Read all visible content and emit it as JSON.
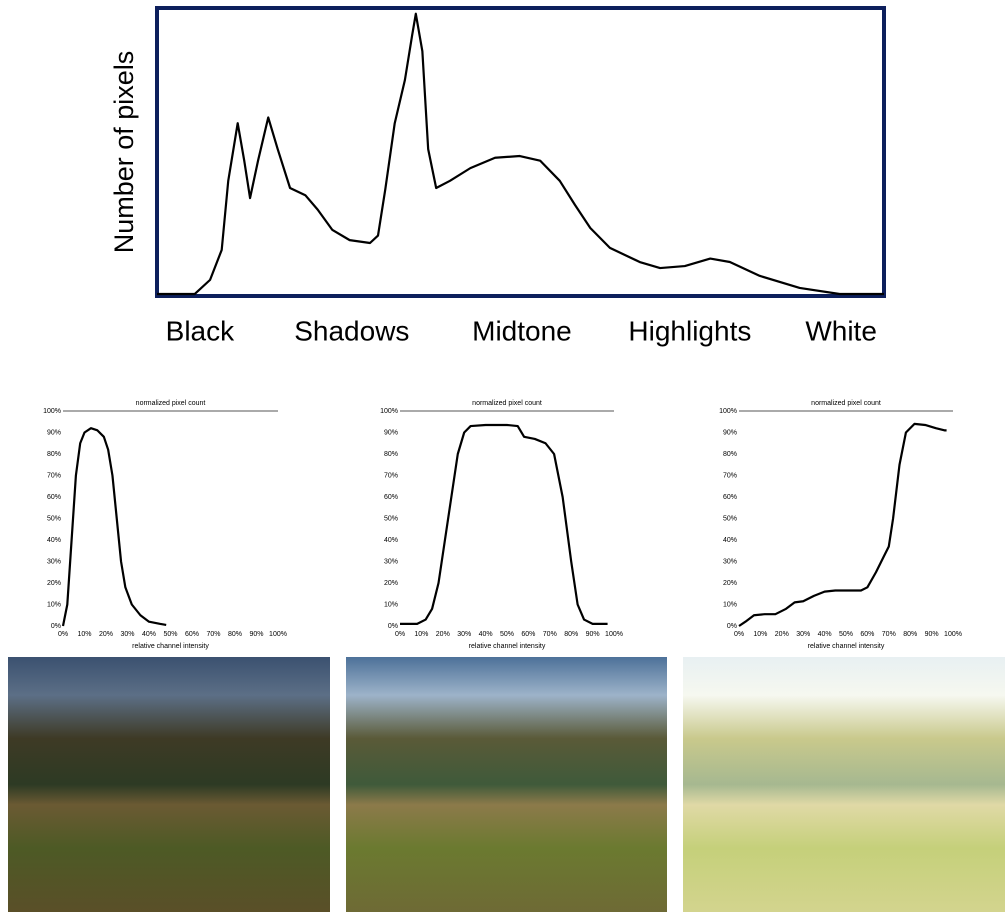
{
  "chart_data": [
    {
      "type": "line",
      "ylabel": "Number of pixels",
      "color": "#000000",
      "frame_color": "#0d1f5c",
      "x": [
        0,
        5.2,
        7.3,
        8.9,
        9.8,
        11.1,
        12,
        12.8,
        13.9,
        15.3,
        16.6,
        18.3,
        20.4,
        22.1,
        24.1,
        26.5,
        29.3,
        30.4,
        31.4,
        32.7,
        34.1,
        35.1,
        35.6,
        36.5,
        37.3,
        38.4,
        40.3,
        43.1,
        46.5,
        49.9,
        52.7,
        55.4,
        57.5,
        59.6,
        62.3,
        66.4,
        69.2,
        72.6,
        76.1,
        78.8,
        82.9,
        88.4,
        93.9,
        100
      ],
      "values": [
        0.7,
        0.7,
        5.6,
        16,
        40,
        60,
        47,
        34,
        47,
        62,
        51,
        37.5,
        35,
        30,
        23,
        19.4,
        18.4,
        21,
        37,
        60,
        75,
        90.6,
        98,
        85,
        51,
        37.5,
        40,
        44.4,
        48,
        48.6,
        47,
        40,
        31.6,
        23.6,
        16.7,
        11.8,
        9.7,
        10.4,
        13,
        11.8,
        7,
        2.8,
        0.7,
        0.7
      ],
      "xlim": [
        0,
        100
      ],
      "ylim": [
        0,
        100
      ],
      "xticks": [
        {
          "value": 5.9,
          "label": "Black"
        },
        {
          "value": 26.8,
          "label": "Shadows"
        },
        {
          "value": 50.2,
          "label": "Midtone"
        },
        {
          "value": 73.3,
          "label": "Highlights"
        },
        {
          "value": 94.1,
          "label": "White"
        }
      ]
    },
    {
      "type": "line",
      "title": "normalized pixel count",
      "xlabel": "relative channel intensity",
      "color": "#000000",
      "x": [
        0,
        2,
        4,
        6,
        8,
        10,
        13,
        16,
        19,
        21,
        23,
        25,
        27,
        29,
        32,
        36,
        40,
        45,
        48
      ],
      "values": [
        0,
        10,
        40,
        70,
        85,
        90,
        92,
        91,
        88,
        82,
        70,
        50,
        30,
        18,
        10,
        5,
        2,
        1,
        0.5
      ],
      "xlim": [
        0,
        100
      ],
      "ylim": [
        0,
        100
      ],
      "xticks": [
        {
          "value": 0,
          "label": "0%"
        },
        {
          "value": 10,
          "label": "10%"
        },
        {
          "value": 20,
          "label": "20%"
        },
        {
          "value": 30,
          "label": "30%"
        },
        {
          "value": 40,
          "label": "40%"
        },
        {
          "value": 50,
          "label": "50%"
        },
        {
          "value": 60,
          "label": "60%"
        },
        {
          "value": 70,
          "label": "70%"
        },
        {
          "value": 80,
          "label": "80%"
        },
        {
          "value": 90,
          "label": "90%"
        },
        {
          "value": 100,
          "label": "100%"
        }
      ],
      "yticks": [
        {
          "value": 0,
          "label": "0%"
        },
        {
          "value": 10,
          "label": "10%"
        },
        {
          "value": 20,
          "label": "20%"
        },
        {
          "value": 30,
          "label": "30%"
        },
        {
          "value": 40,
          "label": "40%"
        },
        {
          "value": 50,
          "label": "50%"
        },
        {
          "value": 60,
          "label": "60%"
        },
        {
          "value": 70,
          "label": "70%"
        },
        {
          "value": 80,
          "label": "80%"
        },
        {
          "value": 90,
          "label": "90%"
        },
        {
          "value": 100,
          "label": "100%"
        }
      ]
    },
    {
      "type": "line",
      "title": "normalized pixel count",
      "xlabel": "relative channel intensity",
      "color": "#000000",
      "x": [
        0,
        8,
        12,
        15,
        18,
        21,
        24,
        27,
        30,
        33,
        40,
        50,
        55,
        58,
        63,
        68,
        72,
        76,
        80,
        83,
        86,
        90,
        97
      ],
      "values": [
        1,
        1,
        3,
        8,
        20,
        40,
        60,
        80,
        90,
        93,
        93.5,
        93.5,
        93,
        88,
        87,
        85,
        80,
        60,
        30,
        10,
        3,
        1,
        1
      ],
      "xlim": [
        0,
        100
      ],
      "ylim": [
        0,
        100
      ],
      "xticks": [
        {
          "value": 0,
          "label": "0%"
        },
        {
          "value": 10,
          "label": "10%"
        },
        {
          "value": 20,
          "label": "20%"
        },
        {
          "value": 30,
          "label": "30%"
        },
        {
          "value": 40,
          "label": "40%"
        },
        {
          "value": 50,
          "label": "50%"
        },
        {
          "value": 60,
          "label": "60%"
        },
        {
          "value": 70,
          "label": "70%"
        },
        {
          "value": 80,
          "label": "80%"
        },
        {
          "value": 90,
          "label": "90%"
        },
        {
          "value": 100,
          "label": "100%"
        }
      ],
      "yticks": [
        {
          "value": 0,
          "label": "0%"
        },
        {
          "value": 10,
          "label": "10%"
        },
        {
          "value": 20,
          "label": "20%"
        },
        {
          "value": 30,
          "label": "30%"
        },
        {
          "value": 40,
          "label": "40%"
        },
        {
          "value": 50,
          "label": "50%"
        },
        {
          "value": 60,
          "label": "60%"
        },
        {
          "value": 70,
          "label": "70%"
        },
        {
          "value": 80,
          "label": "80%"
        },
        {
          "value": 90,
          "label": "90%"
        },
        {
          "value": 100,
          "label": "100%"
        }
      ]
    },
    {
      "type": "line",
      "title": "normalized pixel count",
      "xlabel": "relative channel intensity",
      "color": "#000000",
      "x": [
        0,
        3,
        7,
        12,
        17,
        22,
        26,
        30,
        35,
        40,
        45,
        50,
        57,
        60,
        64,
        68,
        70,
        72,
        75,
        78,
        82,
        87,
        92,
        96,
        97
      ],
      "values": [
        0,
        2,
        5,
        5.5,
        5.5,
        8,
        11,
        11.5,
        14,
        16,
        16.5,
        16.5,
        16.5,
        18,
        25,
        33,
        37,
        50,
        75,
        90,
        94,
        93.5,
        92,
        91,
        91
      ],
      "xlim": [
        0,
        100
      ],
      "ylim": [
        0,
        100
      ],
      "xticks": [
        {
          "value": 0,
          "label": "0%"
        },
        {
          "value": 10,
          "label": "10%"
        },
        {
          "value": 20,
          "label": "20%"
        },
        {
          "value": 30,
          "label": "30%"
        },
        {
          "value": 40,
          "label": "40%"
        },
        {
          "value": 50,
          "label": "50%"
        },
        {
          "value": 60,
          "label": "60%"
        },
        {
          "value": 70,
          "label": "70%"
        },
        {
          "value": 80,
          "label": "80%"
        },
        {
          "value": 90,
          "label": "90%"
        },
        {
          "value": 100,
          "label": "100%"
        }
      ],
      "yticks": [
        {
          "value": 0,
          "label": "0%"
        },
        {
          "value": 10,
          "label": "10%"
        },
        {
          "value": 20,
          "label": "20%"
        },
        {
          "value": 30,
          "label": "30%"
        },
        {
          "value": 40,
          "label": "40%"
        },
        {
          "value": 50,
          "label": "50%"
        },
        {
          "value": 60,
          "label": "60%"
        },
        {
          "value": 70,
          "label": "70%"
        },
        {
          "value": 80,
          "label": "80%"
        },
        {
          "value": 90,
          "label": "90%"
        },
        {
          "value": 100,
          "label": "100%"
        }
      ]
    }
  ]
}
